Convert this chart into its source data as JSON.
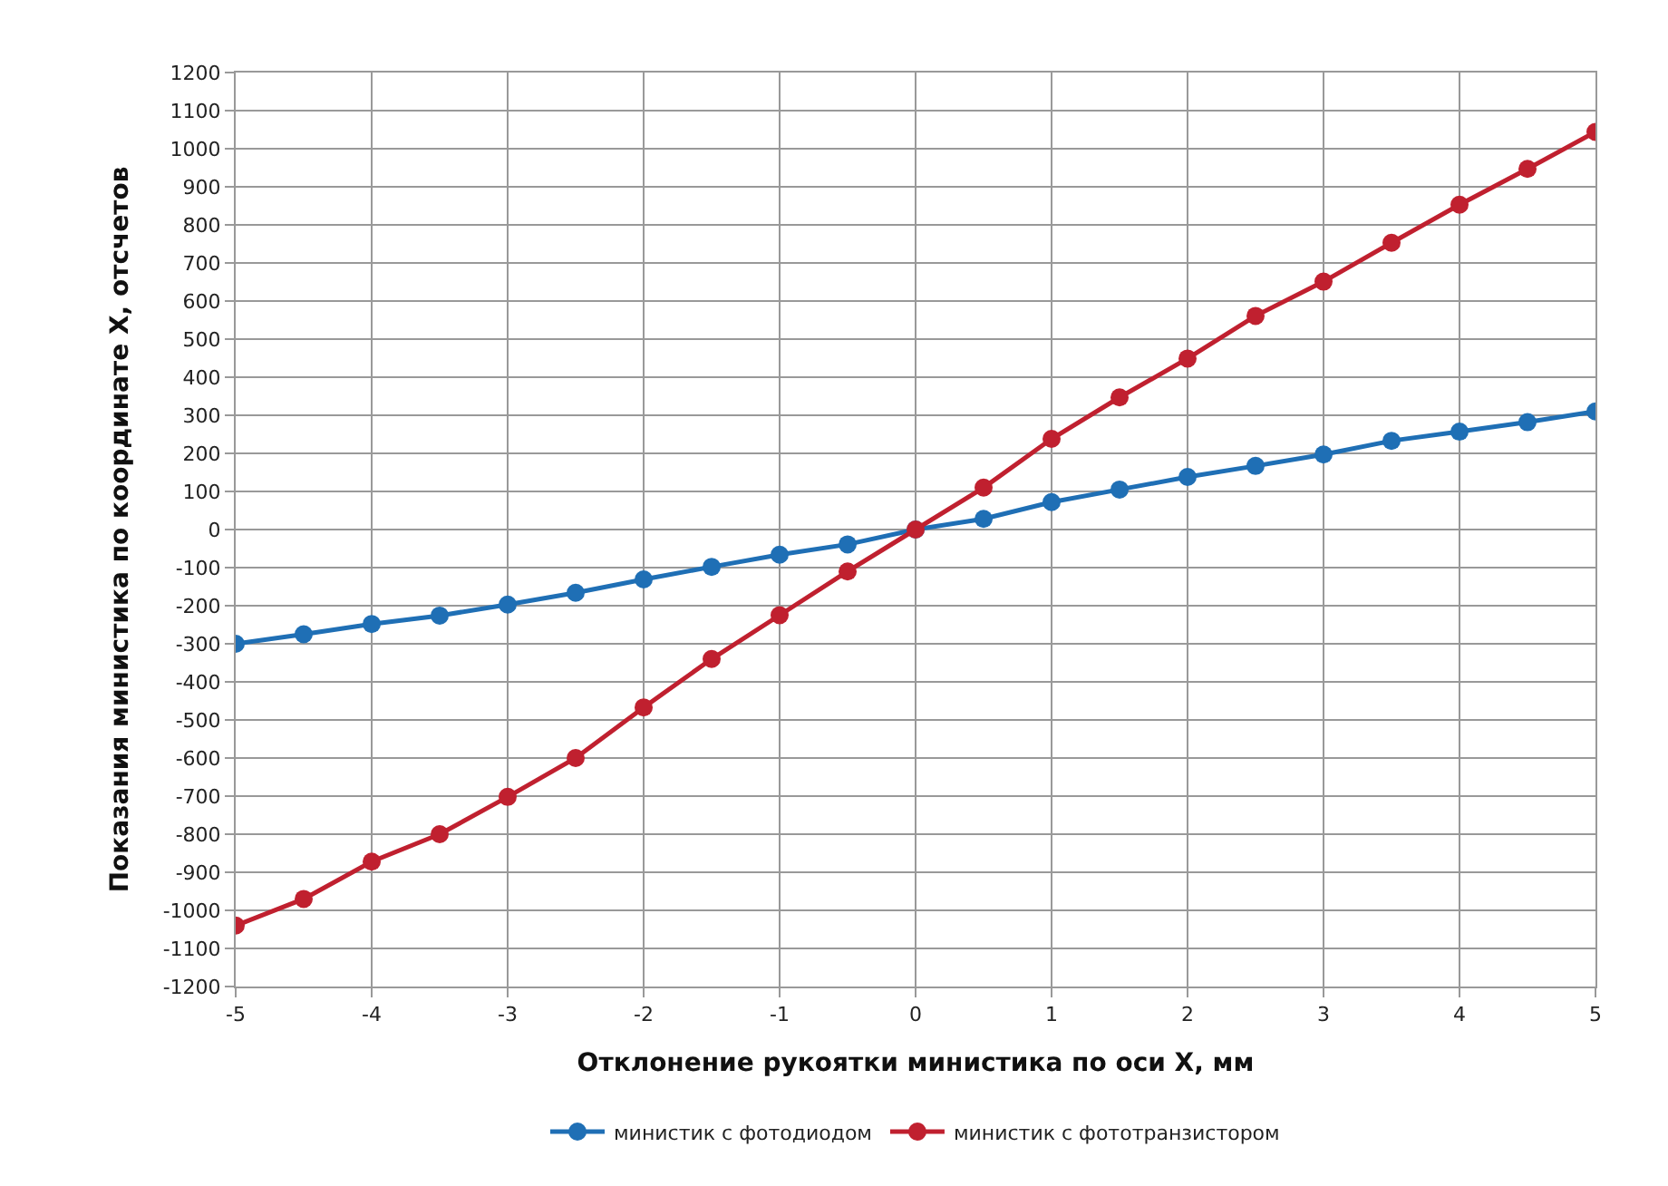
{
  "chart_data": {
    "type": "line",
    "xlabel": "Отклонение рукоятки министика по оси X, мм",
    "ylabel": "Показания министика по координате X, отсчетов",
    "x": [
      -5,
      -4.5,
      -4,
      -3.5,
      -3,
      -2.5,
      -2,
      -1.5,
      -1,
      -0.5,
      0,
      0.5,
      1,
      1.5,
      2,
      2.5,
      3,
      3.5,
      4,
      4.5,
      5
    ],
    "series": [
      {
        "name": "министик с фотодиодом",
        "color": "#1f6fb5",
        "values": [
          -300,
          -275,
          -248,
          -226,
          -197,
          -166,
          -131,
          -98,
          -66,
          -39,
          0,
          28,
          72,
          105,
          138,
          167,
          197,
          233,
          257,
          282,
          310
        ]
      },
      {
        "name": "министик с фототранзистором",
        "color": "#c0202f",
        "values": [
          -1040,
          -970,
          -872,
          -800,
          -702,
          -600,
          -467,
          -340,
          -225,
          -110,
          0,
          110,
          238,
          347,
          449,
          561,
          651,
          753,
          853,
          947,
          1044
        ]
      }
    ],
    "xlim": [
      -5,
      5
    ],
    "xticks": [
      -5,
      -4,
      -3,
      -2,
      -1,
      0,
      1,
      2,
      3,
      4,
      5
    ],
    "ylim": [
      -1200,
      1200
    ],
    "yticks": [
      -1200,
      -1100,
      -1000,
      -900,
      -800,
      -700,
      -600,
      -500,
      -400,
      -300,
      -200,
      -100,
      0,
      100,
      200,
      300,
      400,
      500,
      600,
      700,
      800,
      900,
      1000,
      1100,
      1200
    ],
    "grid": true,
    "legend": "bottom",
    "marker": "circle",
    "line_style": "solid"
  }
}
